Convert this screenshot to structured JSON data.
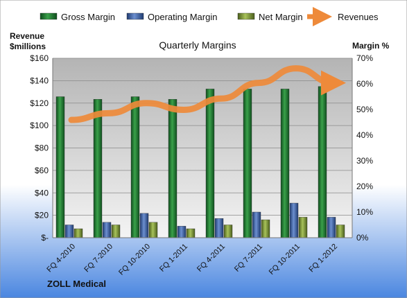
{
  "chart_data": {
    "type": "bar",
    "title": "Quarterly Margins",
    "categories": [
      "FQ 4-2010",
      "FQ 7-2010",
      "FQ 10-2010",
      "FQ 1-2011",
      "FQ 4-2011",
      "FQ 7-2011",
      "FQ 10-2011",
      "FQ 1-2012"
    ],
    "series": [
      {
        "name": "Gross Margin",
        "axis": "right",
        "type": "bar",
        "color": "#2e8b3e",
        "values": [
          55,
          54,
          55,
          54,
          58,
          58,
          58,
          59
        ]
      },
      {
        "name": "Operating Margin",
        "axis": "right",
        "type": "bar",
        "color": "#4a6fb5",
        "values": [
          5,
          6,
          9.5,
          4.5,
          7.5,
          10,
          13.5,
          8
        ]
      },
      {
        "name": "Net Margin",
        "axis": "right",
        "type": "bar",
        "color": "#8aa83a",
        "values": [
          3.5,
          5,
          6,
          3.5,
          5,
          7,
          8,
          5
        ]
      },
      {
        "name": "Revenues",
        "axis": "left",
        "type": "line",
        "color": "#ee8a3a",
        "values": [
          105,
          111,
          120,
          114,
          124,
          138,
          151,
          138
        ]
      }
    ],
    "ylabel_left": "Revenue\n$millions",
    "ylabel_right": "Margin %",
    "ylim_left": [
      0,
      160
    ],
    "ylim_right": [
      0,
      70
    ],
    "yticks_left": [
      "$-",
      "$20",
      "$40",
      "$60",
      "$80",
      "$100",
      "$120",
      "$140",
      "$160"
    ],
    "yticks_right": [
      "0%",
      "10%",
      "20%",
      "30%",
      "40%",
      "50%",
      "60%",
      "70%"
    ],
    "grid": true,
    "legend": "top",
    "footer": "ZOLL Medical"
  }
}
